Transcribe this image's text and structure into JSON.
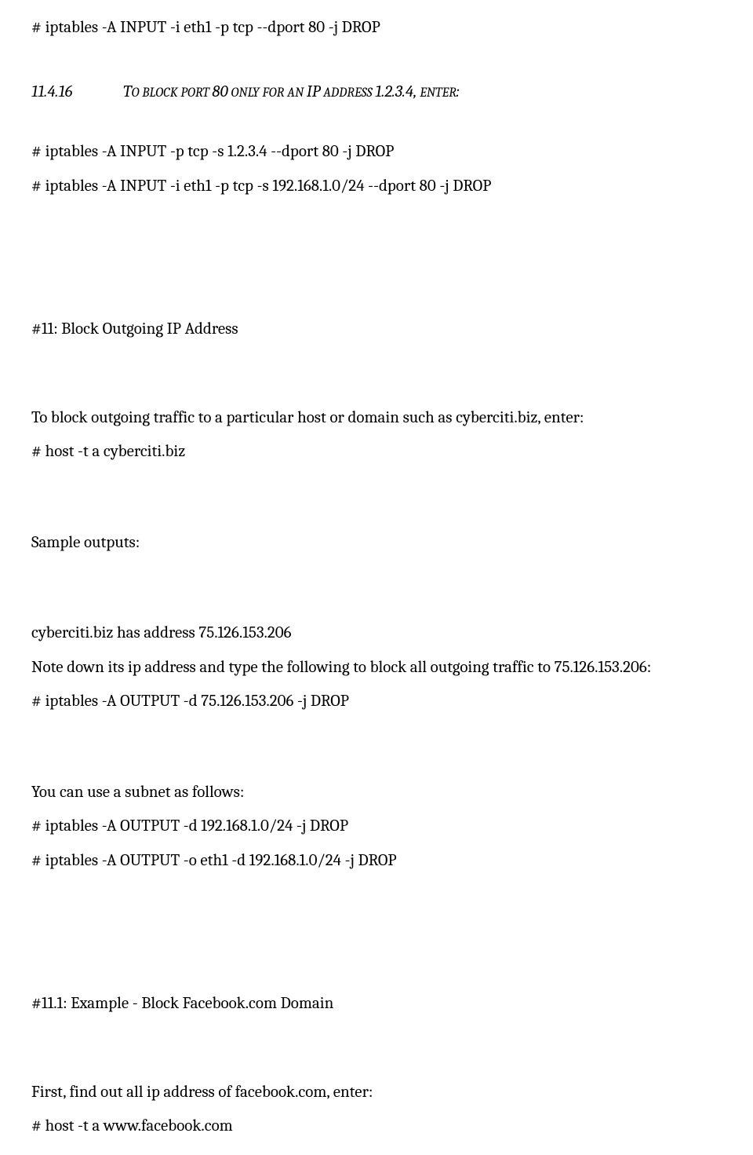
{
  "line1": "# iptables -A INPUT -i eth1 -p tcp --dport 80 -j DROP",
  "section1": {
    "number": "11.4.16",
    "title_prefix": "T",
    "title_small": "O BLOCK PORT ",
    "title_num": "80",
    "title_small2": " ONLY FOR AN ",
    "title_ip": "IP",
    "title_small3": " ADDRESS ",
    "title_ip_addr": "1.2.3.4,",
    "title_small4": " ENTER",
    "title_colon": ":"
  },
  "cmd1": "# iptables -A INPUT -p tcp -s 1.2.3.4 --dport 80 -j DROP",
  "cmd2": "# iptables -A INPUT -i eth1 -p tcp -s 192.168.1.0/24 --dport 80 -j DROP",
  "heading2": "#11: Block Outgoing IP Address",
  "body1": "To block outgoing traffic to a particular host or domain such as cyberciti.biz, enter:",
  "cmd3": "# host -t a cyberciti.biz",
  "body2": "Sample outputs:",
  "body3": "cyberciti.biz has address 75.126.153.206",
  "body4": "Note down its ip address and type the following to block all outgoing traffic to 75.126.153.206:",
  "cmd4": "# iptables -A OUTPUT -d 75.126.153.206 -j DROP",
  "body5": "You can use a subnet as follows:",
  "cmd5": "# iptables -A OUTPUT -d 192.168.1.0/24 -j DROP",
  "cmd6": "# iptables -A OUTPUT -o eth1 -d 192.168.1.0/24 -j DROP",
  "heading3": "#11.1: Example - Block Facebook.com Domain",
  "body6": "First, find out all ip address of facebook.com, enter:",
  "cmd7": "# host -t a www.facebook.com"
}
